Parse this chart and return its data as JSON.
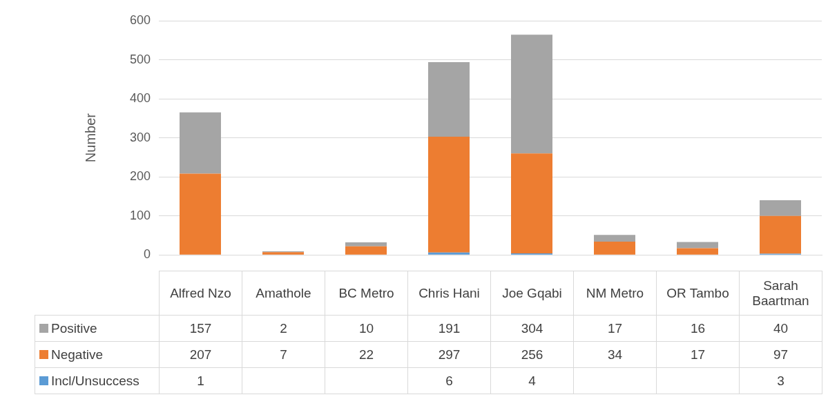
{
  "chart_data": {
    "type": "bar",
    "stacked": true,
    "ylabel": "Number",
    "categories": [
      "Alfred Nzo",
      "Amathole",
      "BC Metro",
      "Chris Hani",
      "Joe Gqabi",
      "NM Metro",
      "OR Tambo",
      "Sarah Baartman"
    ],
    "series": [
      {
        "name": "Incl/Unsuccess",
        "color": "#5b9bd5",
        "values": [
          1,
          null,
          null,
          6,
          4,
          null,
          null,
          3
        ]
      },
      {
        "name": "Negative",
        "color": "#ed7d31",
        "values": [
          207,
          7,
          22,
          297,
          256,
          34,
          17,
          97
        ]
      },
      {
        "name": "Positive",
        "color": "#a5a5a5",
        "values": [
          157,
          2,
          10,
          191,
          304,
          17,
          16,
          40
        ]
      }
    ],
    "ylim": [
      0,
      600
    ],
    "yticks": [
      0,
      100,
      200,
      300,
      400,
      500,
      600
    ],
    "grid": "y",
    "legend": "bottom",
    "data_labels": true
  }
}
